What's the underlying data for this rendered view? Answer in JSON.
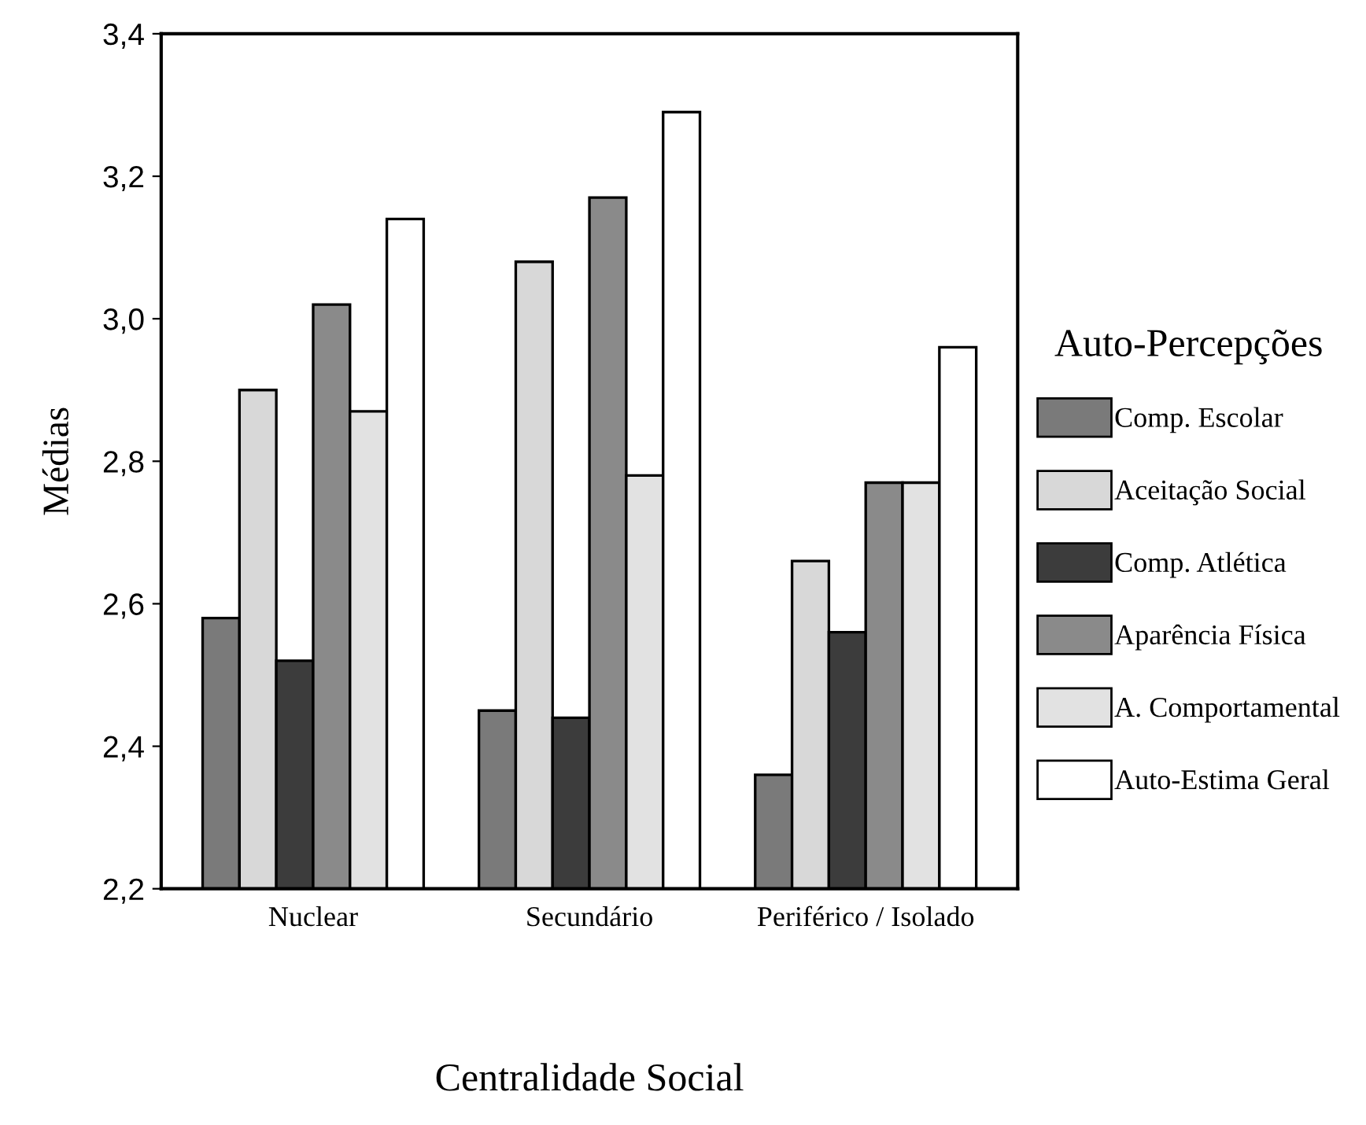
{
  "chart_data": {
    "type": "bar",
    "xlabel": "Centralidade Social",
    "ylabel": "Médias",
    "legend_title": "Auto-Percepções",
    "legend": "right",
    "grid": false,
    "categories": [
      "Nuclear",
      "Secundário",
      "Periférico / Isolado"
    ],
    "ylim": [
      2.2,
      3.4
    ],
    "yticks": [
      {
        "value": 2.2,
        "label": "2,2"
      },
      {
        "value": 2.4,
        "label": "2,4"
      },
      {
        "value": 2.6,
        "label": "2,6"
      },
      {
        "value": 2.8,
        "label": "2,8"
      },
      {
        "value": 3.0,
        "label": "3,0"
      },
      {
        "value": 3.2,
        "label": "3,2"
      },
      {
        "value": 3.4,
        "label": "3,4"
      }
    ],
    "series": [
      {
        "name": "Comp. Escolar",
        "color": "#7a7a7a",
        "values": [
          2.58,
          2.45,
          2.36
        ]
      },
      {
        "name": "Aceitação Social",
        "color": "#d8d8d8",
        "values": [
          2.9,
          3.08,
          2.66
        ]
      },
      {
        "name": "Comp. Atlética",
        "color": "#3c3c3c",
        "values": [
          2.52,
          2.44,
          2.56
        ]
      },
      {
        "name": "Aparência Física",
        "color": "#8a8a8a",
        "values": [
          3.02,
          3.17,
          2.77
        ]
      },
      {
        "name": "A. Comportamental",
        "color": "#e2e2e2",
        "values": [
          2.87,
          2.78,
          2.77
        ]
      },
      {
        "name": "Auto-Estima Geral",
        "color": "#ffffff",
        "values": [
          3.14,
          3.29,
          2.96
        ]
      }
    ]
  }
}
